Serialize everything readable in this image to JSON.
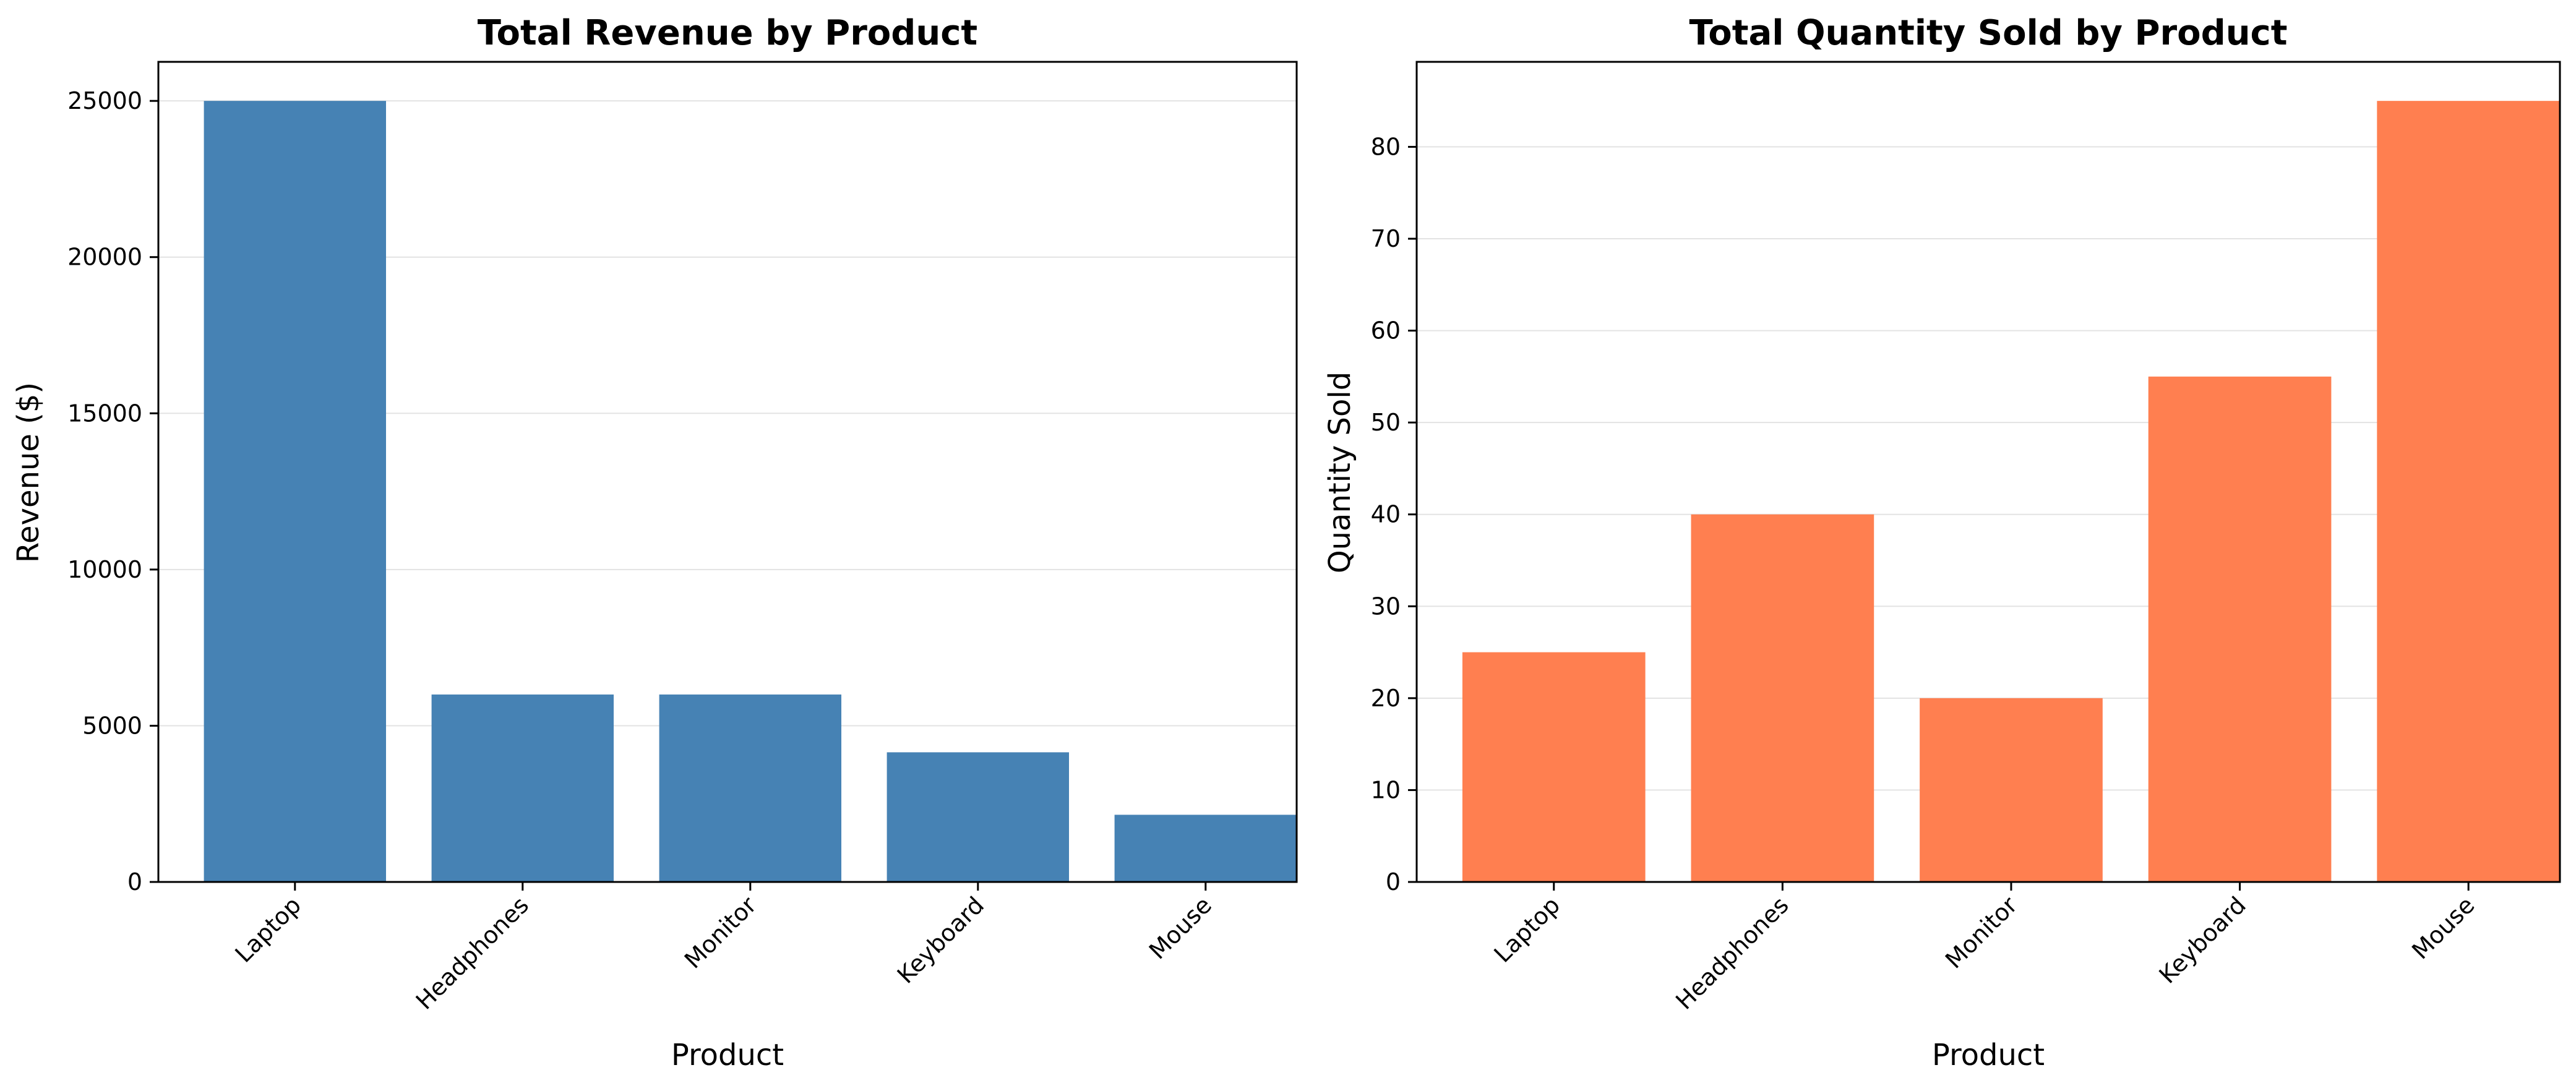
{
  "chart_data": [
    {
      "type": "bar",
      "title": "Total Revenue by Product",
      "xlabel": "Product",
      "ylabel": "Revenue ($)",
      "categories": [
        "Laptop",
        "Headphones",
        "Monitor",
        "Keyboard",
        "Mouse"
      ],
      "values": [
        25000,
        6000,
        6000,
        4150,
        2150
      ],
      "ylim": [
        0,
        26250
      ],
      "yticks": [
        0,
        5000,
        10000,
        15000,
        20000,
        25000
      ],
      "color": "#4682b4",
      "grid": "y"
    },
    {
      "type": "bar",
      "title": "Total Quantity Sold by Product",
      "xlabel": "Product",
      "ylabel": "Quantity Sold",
      "categories": [
        "Laptop",
        "Headphones",
        "Monitor",
        "Keyboard",
        "Mouse"
      ],
      "values": [
        25,
        40,
        20,
        55,
        85
      ],
      "ylim": [
        0,
        89.25
      ],
      "yticks": [
        0,
        10,
        20,
        30,
        40,
        50,
        60,
        70,
        80
      ],
      "color": "#ff7f50",
      "grid": "y"
    }
  ]
}
